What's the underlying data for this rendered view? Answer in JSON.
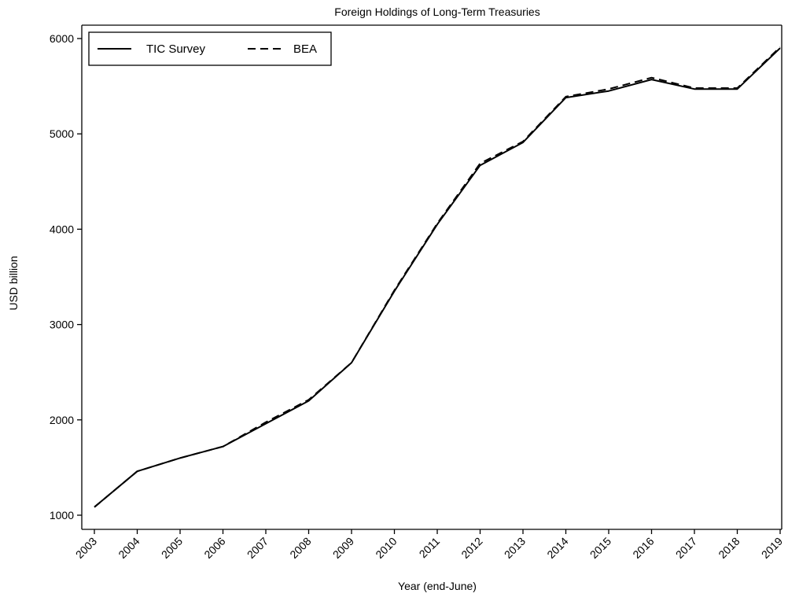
{
  "chart_data": {
    "type": "line",
    "title": "Foreign Holdings of Long-Term Treasuries",
    "xlabel": "Year (end-June)",
    "ylabel": "USD billion",
    "x": [
      "2003",
      "2004",
      "2005",
      "2006",
      "2007",
      "2008",
      "2009",
      "2010",
      "2011",
      "2012",
      "2013",
      "2014",
      "2015",
      "2016",
      "2017",
      "2018",
      "2019"
    ],
    "ylim": [
      1000,
      6000
    ],
    "yticks": [
      1000,
      2000,
      3000,
      4000,
      5000,
      6000
    ],
    "grid": false,
    "legend_position": "top-left",
    "series": [
      {
        "name": "TIC Survey",
        "style": "solid",
        "values": [
          1085,
          1460,
          1600,
          1720,
          1960,
          2200,
          2600,
          3350,
          4050,
          4670,
          4910,
          5380,
          5450,
          5570,
          5470,
          5470,
          5900
        ]
      },
      {
        "name": "BEA",
        "style": "dashed",
        "values": [
          1085,
          1460,
          1600,
          1720,
          1975,
          2210,
          2600,
          3360,
          4060,
          4690,
          4920,
          5390,
          5470,
          5590,
          5480,
          5480,
          5910
        ]
      }
    ]
  }
}
